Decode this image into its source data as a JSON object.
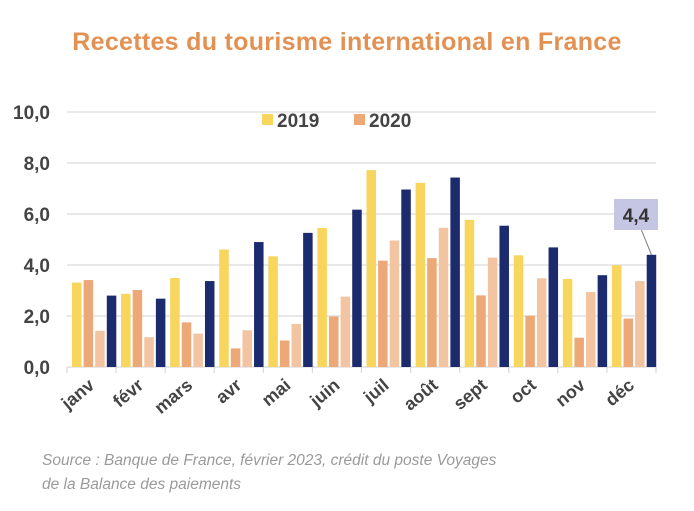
{
  "title": "Recettes du tourisme international en France",
  "source_line1": "Source : Banque de France, février 2023, crédit du poste Voyages",
  "source_line2": "de la Balance des paiements",
  "chart_data": {
    "type": "bar",
    "title": "Recettes du tourisme international en France",
    "categories": [
      "janv",
      "févr",
      "mars",
      "avr",
      "mai",
      "juin",
      "juil",
      "août",
      "sept",
      "oct",
      "nov",
      "déc"
    ],
    "ylim": [
      0,
      10
    ],
    "yticks": [
      "0,0",
      "2,0",
      "4,0",
      "6,0",
      "8,0",
      "10,0"
    ],
    "grid": true,
    "legend_position": "top",
    "series": [
      {
        "name": "2019",
        "color": "#F8D55C",
        "values": [
          3.31,
          2.87,
          3.49,
          4.61,
          4.34,
          5.45,
          7.72,
          7.22,
          5.77,
          4.38,
          3.45,
          3.99
        ]
      },
      {
        "name": "2020",
        "color": "#EDA878",
        "values": [
          3.41,
          3.02,
          1.75,
          0.73,
          1.04,
          1.98,
          4.17,
          4.27,
          2.81,
          2.01,
          1.15,
          1.9
        ]
      },
      {
        "color": "#F3C4A2",
        "values": [
          1.42,
          1.17,
          1.31,
          1.44,
          1.69,
          2.76,
          4.96,
          5.46,
          4.29,
          3.48,
          2.94,
          3.37
        ]
      },
      {
        "color": "#1C2A6E",
        "values": [
          2.8,
          2.68,
          3.37,
          4.9,
          5.26,
          6.17,
          6.96,
          7.43,
          5.54,
          4.69,
          3.6,
          4.4
        ]
      }
    ],
    "annotation": {
      "text": "4,4",
      "category": "déc",
      "series_index": 3,
      "box_color": "#C5C6E4"
    }
  }
}
